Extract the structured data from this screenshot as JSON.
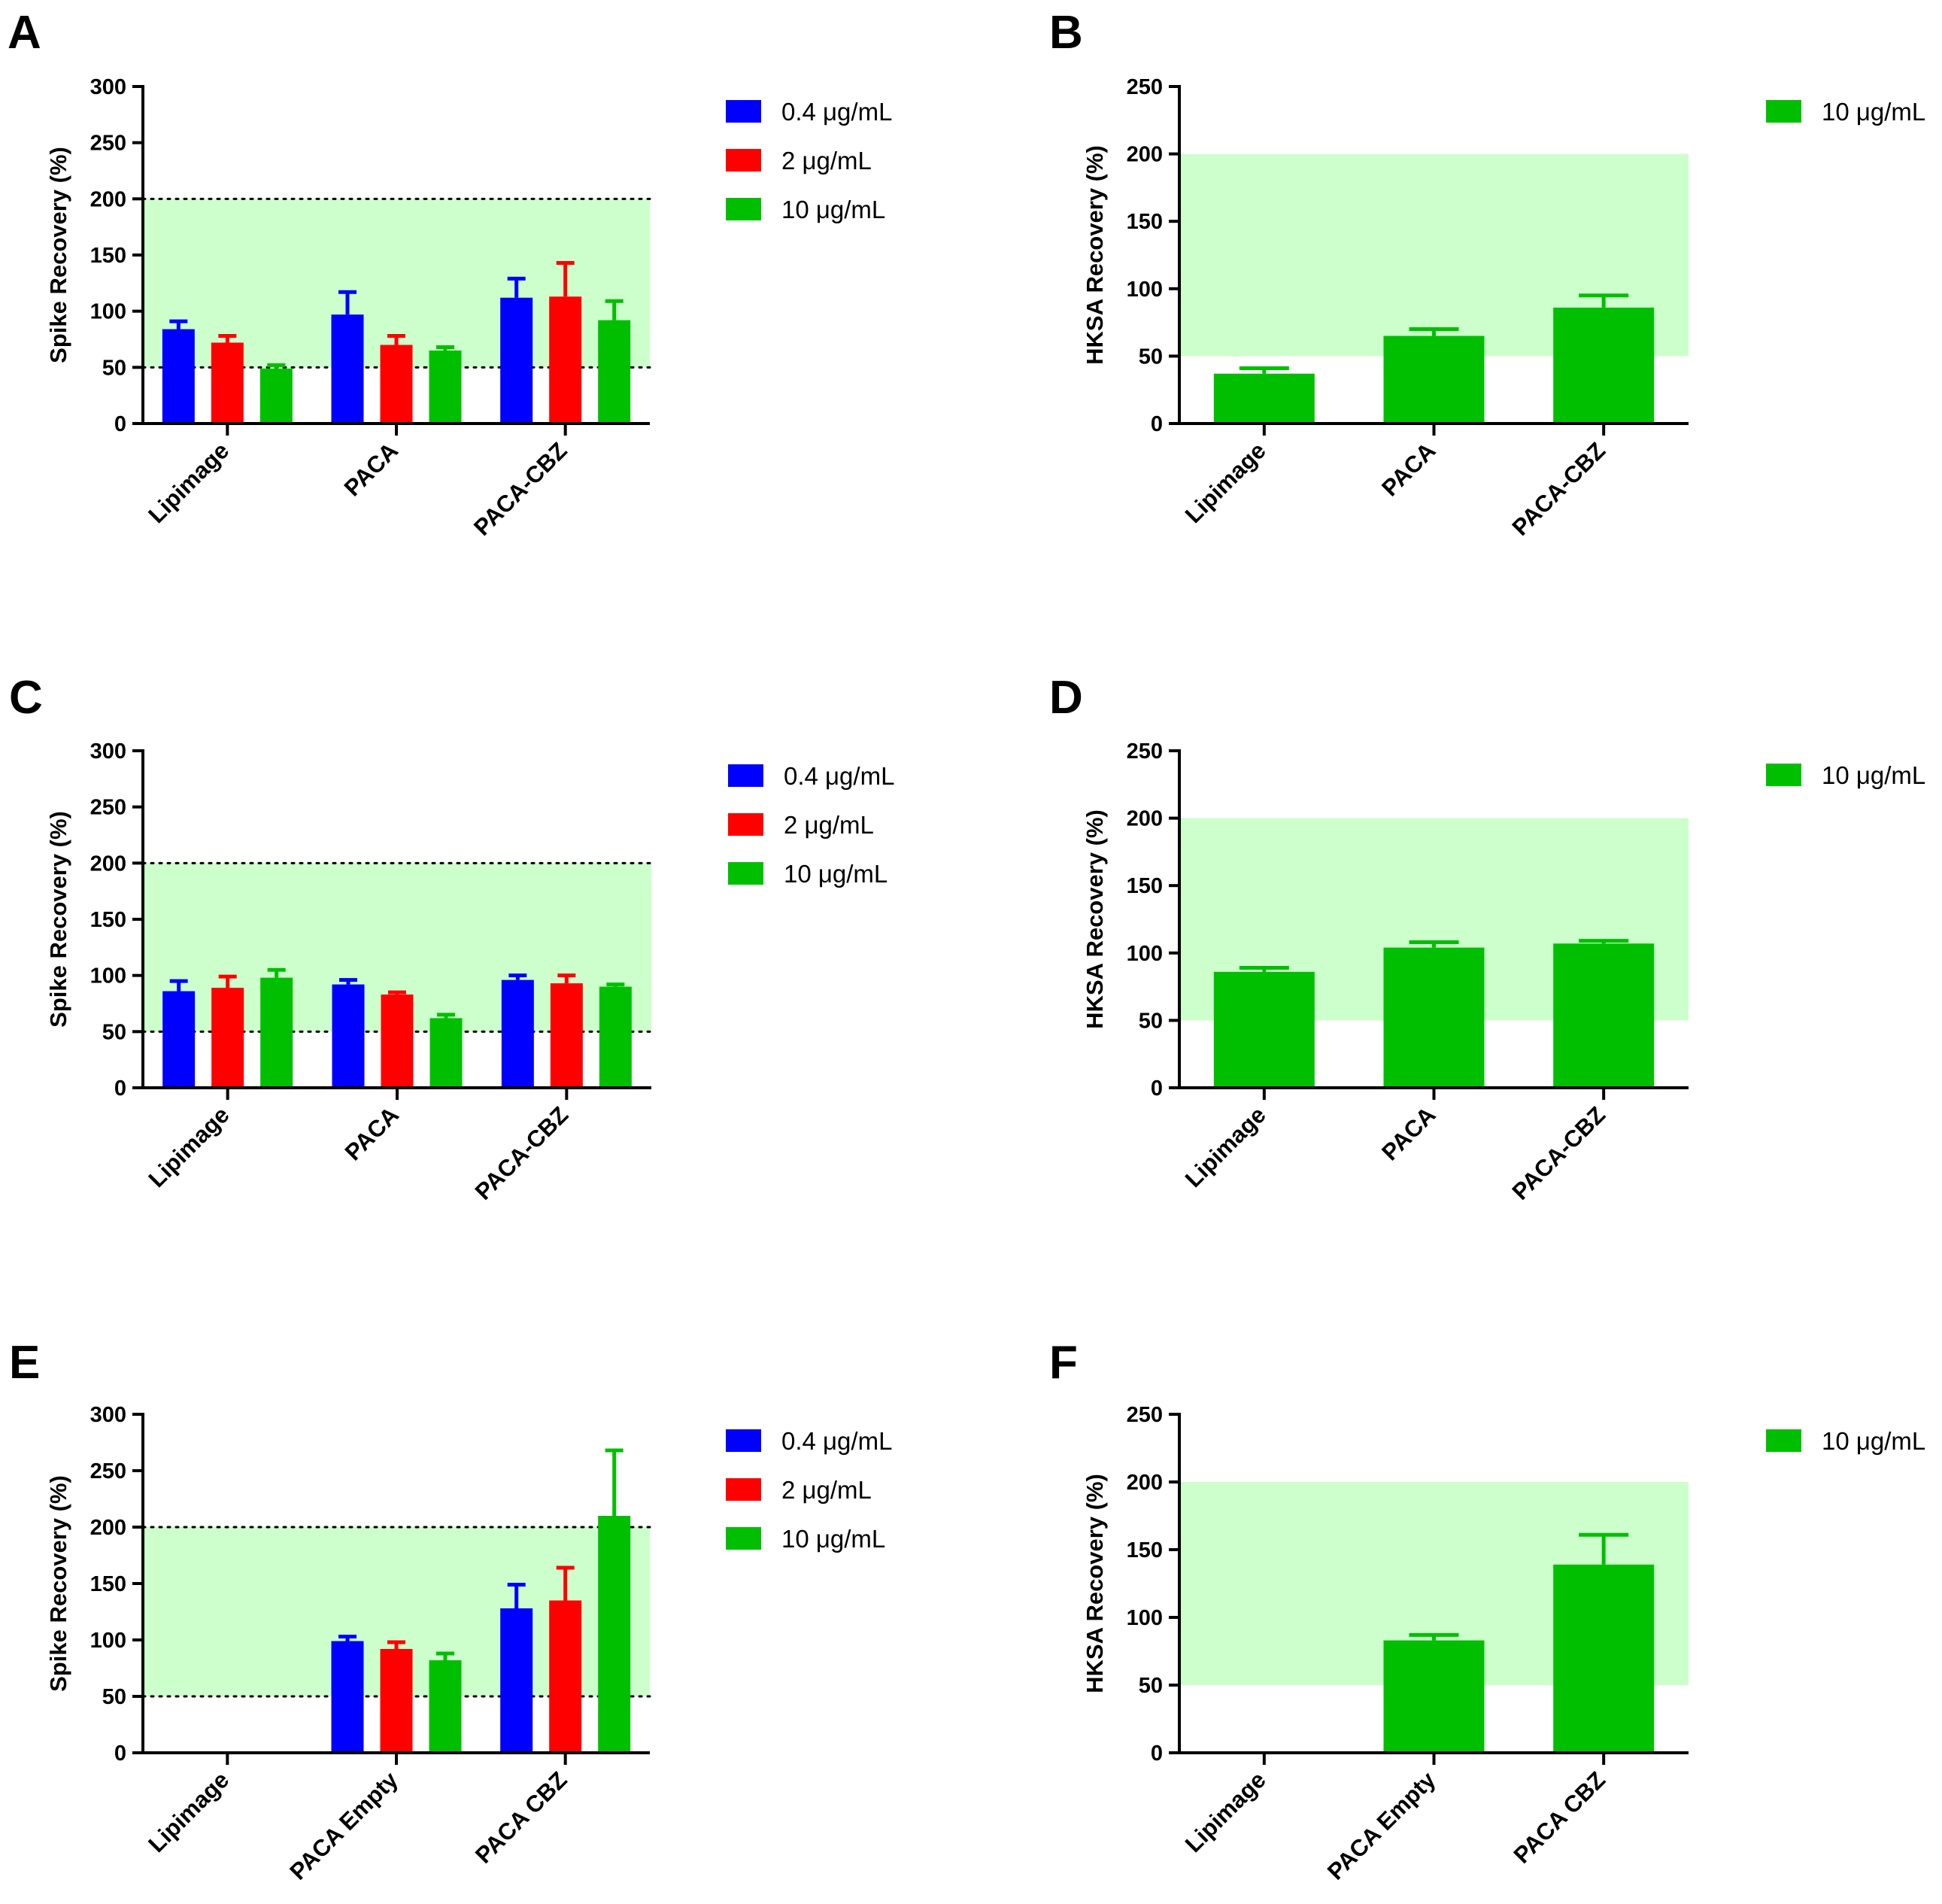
{
  "colors": {
    "blue": "#0000ff",
    "red": "#ff0000",
    "green": "#00bf00",
    "range_band": "#ccffcc",
    "axis": "#000000"
  },
  "chart_data": [
    {
      "panel": "A",
      "type": "bar",
      "ylabel": "Spike Recovery (%)",
      "ylim": [
        0,
        300
      ],
      "yticks": [
        0,
        50,
        100,
        150,
        200,
        250,
        300
      ],
      "categories": [
        "Lipimage",
        "PACA",
        "PACA-CBZ"
      ],
      "acceptance_band": [
        50,
        200
      ],
      "band_lines": "dotted",
      "legend_position": "right",
      "series": [
        {
          "name": "0.4 μg/mL",
          "color": "blue",
          "values": [
            84,
            97,
            112
          ],
          "errors": [
            7,
            20,
            17
          ]
        },
        {
          "name": "2 μg/mL",
          "color": "red",
          "values": [
            72,
            70,
            113
          ],
          "errors": [
            6,
            8,
            30
          ]
        },
        {
          "name": "10 μg/mL",
          "color": "green",
          "values": [
            49,
            65,
            92
          ],
          "errors": [
            3,
            3,
            17
          ]
        }
      ]
    },
    {
      "panel": "B",
      "type": "bar",
      "ylabel": "HKSA Recovery (%)",
      "ylim": [
        0,
        250
      ],
      "yticks": [
        0,
        50,
        100,
        150,
        200,
        250
      ],
      "categories": [
        "Lipimage",
        "PACA",
        "PACA-CBZ"
      ],
      "acceptance_band": [
        50,
        200
      ],
      "band_lines": "none",
      "legend_position": "right",
      "series": [
        {
          "name": "10 μg/mL",
          "color": "green",
          "values": [
            37,
            65,
            86
          ],
          "errors": [
            4,
            5,
            9
          ]
        }
      ]
    },
    {
      "panel": "C",
      "type": "bar",
      "ylabel": "Spike Recovery (%)",
      "ylim": [
        0,
        300
      ],
      "yticks": [
        0,
        50,
        100,
        150,
        200,
        250,
        300
      ],
      "categories": [
        "Lipimage",
        "PACA",
        "PACA-CBZ"
      ],
      "acceptance_band": [
        50,
        200
      ],
      "band_lines": "dotted",
      "legend_position": "right",
      "series": [
        {
          "name": "0.4 μg/mL",
          "color": "blue",
          "values": [
            86,
            92,
            96
          ],
          "errors": [
            9,
            4,
            4
          ]
        },
        {
          "name": "2 μg/mL",
          "color": "red",
          "values": [
            89,
            83,
            93
          ],
          "errors": [
            10,
            2,
            7
          ]
        },
        {
          "name": "10 μg/mL",
          "color": "green",
          "values": [
            98,
            62,
            90
          ],
          "errors": [
            7,
            3,
            2
          ]
        }
      ]
    },
    {
      "panel": "D",
      "type": "bar",
      "ylabel": "HKSA Recovery (%)",
      "ylim": [
        0,
        250
      ],
      "yticks": [
        0,
        50,
        100,
        150,
        200,
        250
      ],
      "categories": [
        "Lipimage",
        "PACA",
        "PACA-CBZ"
      ],
      "acceptance_band": [
        50,
        200
      ],
      "band_lines": "none",
      "legend_position": "right",
      "series": [
        {
          "name": "10 μg/mL",
          "color": "green",
          "values": [
            86,
            104,
            107
          ],
          "errors": [
            3,
            4,
            2
          ]
        }
      ]
    },
    {
      "panel": "E",
      "type": "bar",
      "ylabel": "Spike Recovery (%)",
      "ylim": [
        0,
        300
      ],
      "yticks": [
        0,
        50,
        100,
        150,
        200,
        250,
        300
      ],
      "categories": [
        "Lipimage",
        "PACA Empty",
        "PACA CBZ"
      ],
      "acceptance_band": [
        50,
        200
      ],
      "band_lines": "dotted",
      "legend_position": "right",
      "series": [
        {
          "name": "0.4 μg/mL",
          "color": "blue",
          "values": [
            null,
            99,
            128
          ],
          "errors": [
            null,
            4,
            21
          ]
        },
        {
          "name": "2 μg/mL",
          "color": "red",
          "values": [
            null,
            92,
            135
          ],
          "errors": [
            null,
            6,
            29
          ]
        },
        {
          "name": "10 μg/mL",
          "color": "green",
          "values": [
            null,
            82,
            210
          ],
          "errors": [
            null,
            6,
            58
          ]
        }
      ]
    },
    {
      "panel": "F",
      "type": "bar",
      "ylabel": "HKSA Recovery (%)",
      "ylim": [
        0,
        250
      ],
      "yticks": [
        0,
        50,
        100,
        150,
        200,
        250
      ],
      "categories": [
        "Lipimage",
        "PACA Empty",
        "PACA CBZ"
      ],
      "acceptance_band": [
        50,
        200
      ],
      "band_lines": "none",
      "legend_position": "right",
      "series": [
        {
          "name": "10 μg/mL",
          "color": "green",
          "values": [
            null,
            83,
            139
          ],
          "errors": [
            null,
            4,
            22
          ]
        }
      ]
    }
  ]
}
